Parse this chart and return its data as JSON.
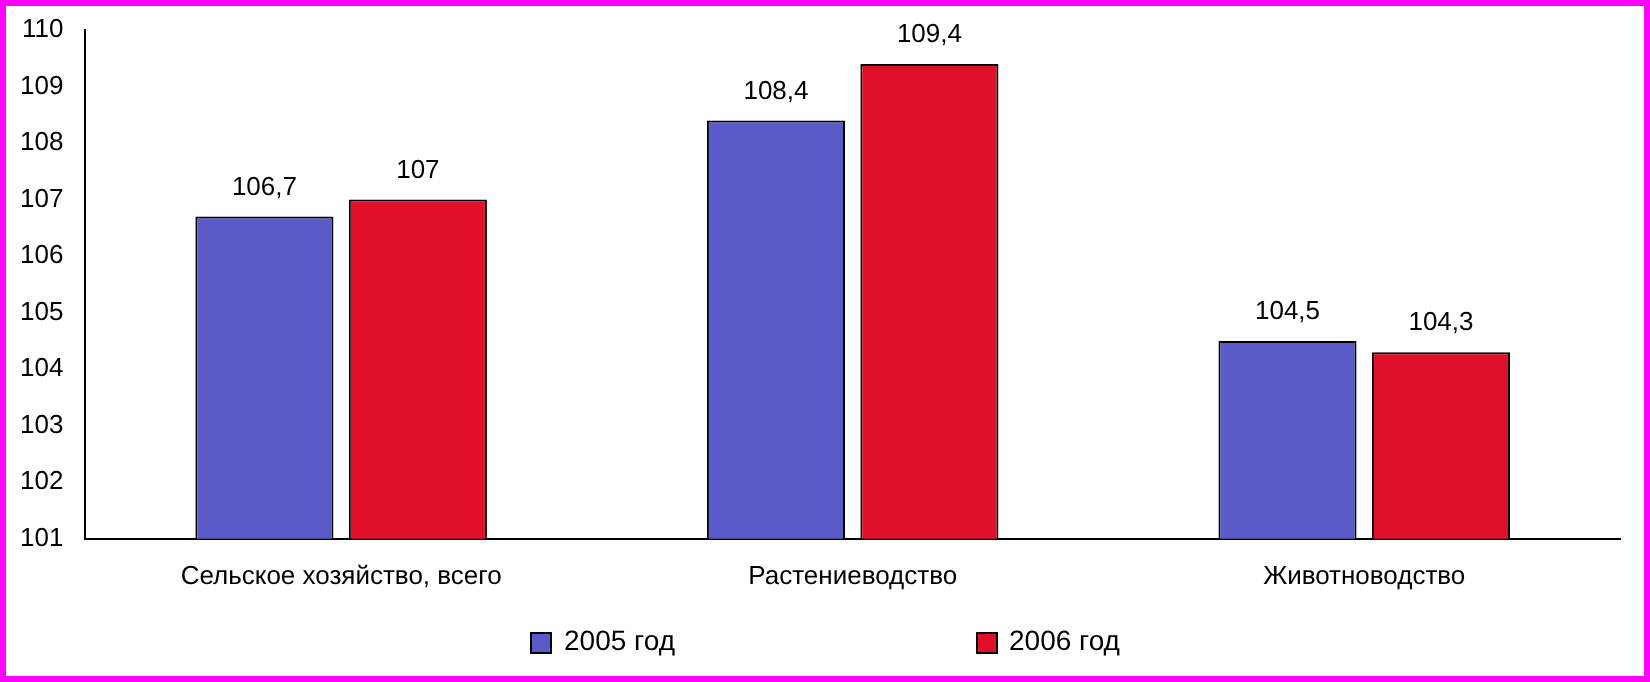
{
  "chart_data": {
    "type": "bar",
    "categories": [
      "Сельское хозяйство, всего",
      "Растениеводство",
      "Животноводство"
    ],
    "series": [
      {
        "name": "2005 год",
        "color": "#5a5ac8",
        "values": [
          106.7,
          108.4,
          104.5
        ],
        "value_labels": [
          "106,7",
          "108,4",
          "104,5"
        ]
      },
      {
        "name": "2006 год",
        "color": "#e0102a",
        "values": [
          107,
          109.4,
          104.3
        ],
        "value_labels": [
          "107",
          "109,4",
          "104,3"
        ]
      }
    ],
    "ylim": [
      101,
      110
    ],
    "yticks": [
      101,
      102,
      103,
      104,
      105,
      106,
      107,
      108,
      109,
      110
    ],
    "grid": false,
    "legend": "bottom"
  }
}
